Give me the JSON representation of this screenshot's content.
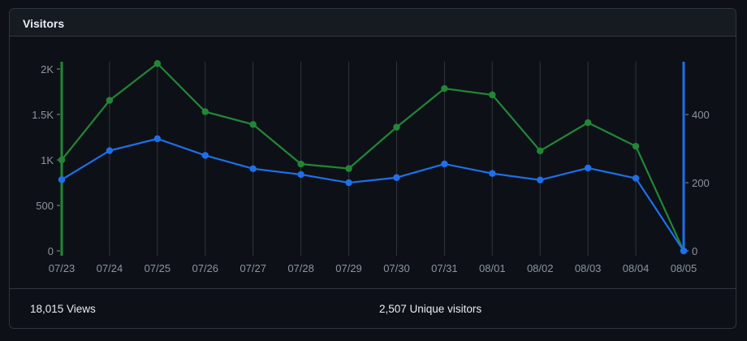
{
  "panel": {
    "title": "Visitors"
  },
  "stats": {
    "views": "18,015 Views",
    "unique": "2,507 Unique visitors"
  },
  "colors": {
    "views": "#238636",
    "unique": "#1f6feb",
    "grid": "#30363d",
    "tick": "#8b949e"
  },
  "chart_data": {
    "type": "line",
    "categories": [
      "07/23",
      "07/24",
      "07/25",
      "07/26",
      "07/27",
      "07/28",
      "07/29",
      "07/30",
      "07/31",
      "08/01",
      "08/02",
      "08/03",
      "08/04",
      "08/05"
    ],
    "series": [
      {
        "axis": "left",
        "color": "#238636",
        "values": [
          1000,
          1655,
          2060,
          1530,
          1390,
          955,
          905,
          1360,
          1785,
          1715,
          1100,
          1410,
          1150,
          0
        ]
      },
      {
        "axis": "right",
        "color": "#1f6feb",
        "values": [
          209,
          294,
          329,
          280,
          241,
          224,
          200,
          215,
          255,
          227,
          208,
          243,
          213,
          0
        ]
      }
    ],
    "left_axis": {
      "ylim": [
        0,
        2080
      ],
      "ticks": [
        0,
        500,
        1000,
        1500,
        2000
      ],
      "tick_labels": [
        "0",
        "500",
        "1K",
        "1.5K",
        "2K"
      ]
    },
    "right_axis": {
      "ylim": [
        0,
        555
      ],
      "ticks": [
        0,
        200,
        400
      ],
      "tick_labels": [
        "0",
        "200",
        "400"
      ]
    },
    "grid": "vertical",
    "legend": "none"
  }
}
